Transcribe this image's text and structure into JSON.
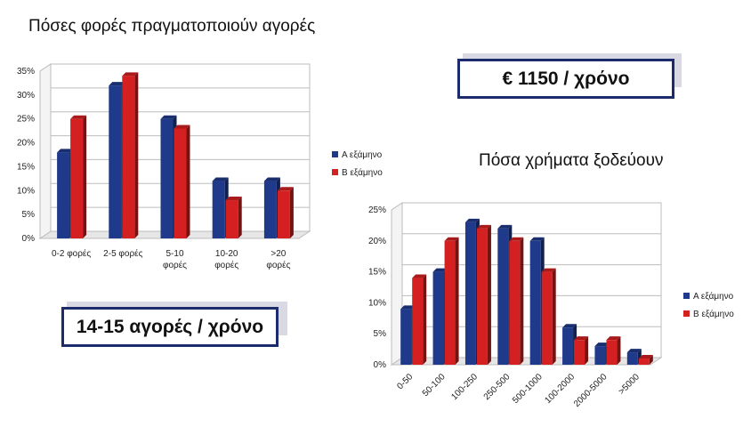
{
  "chart_data": [
    {
      "type": "bar",
      "title": "Πόσες φορές πραγματοποιούν αγορές",
      "categories": [
        "0-2 φορές",
        "2-5 φορές",
        "5-10 φορές",
        "10-20 φορές",
        ">20 φορές"
      ],
      "category_lines": [
        [
          "0-2 φορές"
        ],
        [
          "2-5 φορές"
        ],
        [
          "5-10",
          "φορές"
        ],
        [
          "10-20",
          "φορές"
        ],
        [
          ">20",
          "φορές"
        ]
      ],
      "series": [
        {
          "name": "Α εξάμηνο",
          "values": [
            18,
            32,
            25,
            12,
            12
          ]
        },
        {
          "name": "Β εξάμηνο",
          "values": [
            25,
            34,
            23,
            8,
            10
          ]
        }
      ],
      "yticks": [
        "0%",
        "5%",
        "10%",
        "15%",
        "20%",
        "25%",
        "30%",
        "35%"
      ],
      "ylim": [
        0,
        35
      ],
      "grid": true,
      "legend": "right",
      "colors": [
        "#1f3a8a",
        "#d42020"
      ]
    },
    {
      "type": "bar",
      "title": "Πόσα χρήματα ξοδεύουν",
      "categories": [
        "0-50",
        "50-100",
        "100-250",
        "250-500",
        "500-1000",
        "100-2000",
        "2000-5000",
        ">5000"
      ],
      "series": [
        {
          "name": "Α εξάμηνο",
          "values": [
            9,
            15,
            23,
            22,
            20,
            6,
            3,
            2
          ]
        },
        {
          "name": "Β εξάμηνο",
          "values": [
            14,
            20,
            22,
            20,
            15,
            4,
            4,
            1
          ]
        }
      ],
      "yticks": [
        "0%",
        "5%",
        "10%",
        "15%",
        "20%",
        "25%"
      ],
      "ylim": [
        0,
        25
      ],
      "grid": true,
      "legend": "right",
      "colors": [
        "#1f3a8a",
        "#d42020"
      ]
    }
  ],
  "callouts": {
    "yearly_spend": "€ 1150 / χρόνο",
    "yearly_purchases": "14-15 αγορές / χρόνο"
  }
}
